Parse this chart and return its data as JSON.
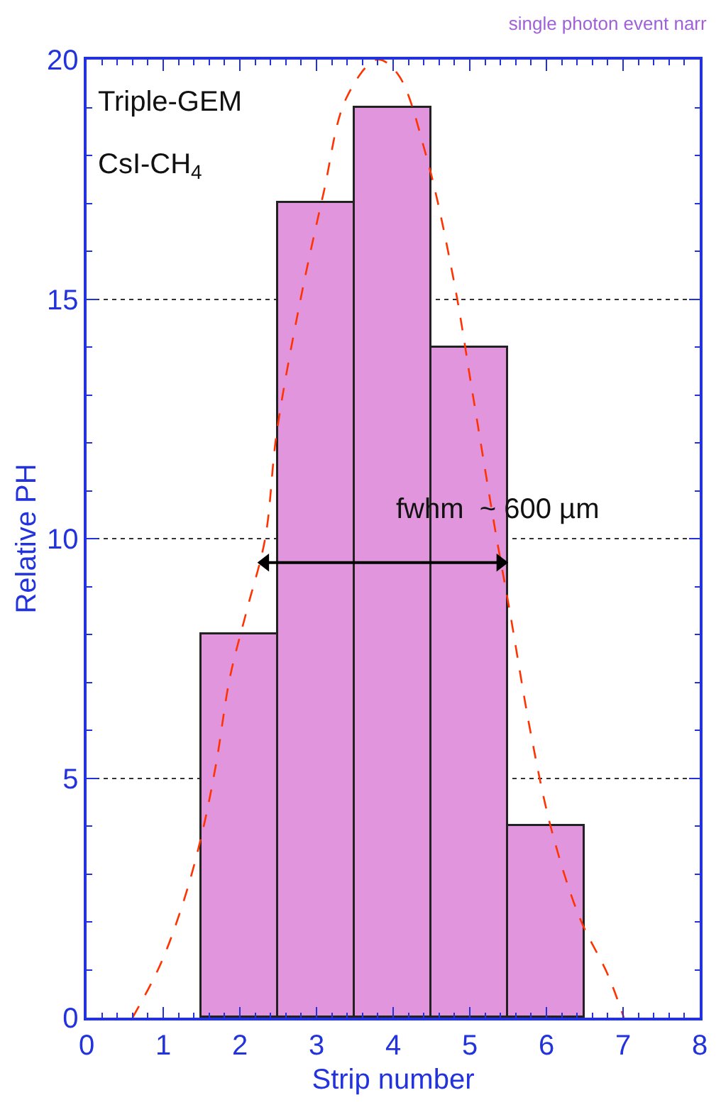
{
  "chart_data": {
    "type": "histogram",
    "title": "single photon event narr",
    "xlabel": "Strip number",
    "ylabel": "Relative PH",
    "bins": [
      1.5,
      2.5,
      3.5,
      4.5,
      5.5,
      6.5
    ],
    "values": [
      8,
      17,
      19,
      14,
      4
    ],
    "color": "#e195dd",
    "series": [
      {
        "type": "line",
        "line_style": "dashed",
        "color": "#ff3300",
        "x": [
          0.6,
          0.96,
          1.26,
          1.5,
          1.69,
          1.87,
          2.09,
          2.33,
          2.48,
          2.78,
          3.09,
          3.39,
          3.79,
          4.06,
          4.43,
          4.79,
          5.04,
          5.34,
          5.52,
          5.8,
          6.07,
          6.43,
          6.8,
          7.01
        ],
        "values": [
          0,
          1.1,
          2.4,
          3.8,
          5.3,
          7.1,
          8.5,
          10,
          12.2,
          14.9,
          17.2,
          19.2,
          20,
          19.7,
          18,
          15.4,
          13,
          10.1,
          8.5,
          5.9,
          3.9,
          2.1,
          0.9,
          0
        ]
      },
      {
        "type": "line",
        "line_style": "solid",
        "marker": "triangle",
        "color": "#000000",
        "x": [
          2.33,
          5.4
        ],
        "values": [
          9.5,
          9.5
        ]
      }
    ],
    "annotations": [
      "Triple-GEM",
      "CsI-CH$_{4}$",
      "fwhm  ~ 600 µm"
    ],
    "xlim": [
      0,
      8
    ],
    "xticks": [
      0,
      1,
      2,
      3,
      4,
      5,
      6,
      7,
      8
    ],
    "ylim": [
      0,
      20
    ],
    "yticks": [
      0,
      5,
      10,
      15,
      20
    ],
    "grid": "y"
  }
}
